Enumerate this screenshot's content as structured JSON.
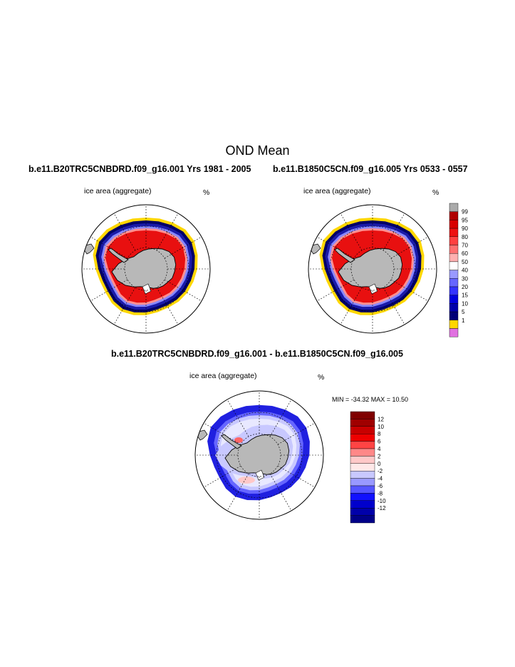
{
  "page_title": "OND Mean",
  "panels": {
    "left": {
      "title": "b.e11.B20TRC5CNBDRD.f09_g16.001  Yrs 1981 - 2005",
      "label": "ice area  (aggregate)",
      "unit": "%"
    },
    "right": {
      "title": "b.e11.B1850C5CN.f09_g16.005  Yrs 0533 - 0557",
      "label": "ice area  (aggregate)",
      "unit": "%"
    },
    "diff": {
      "title": "b.e11.B20TRC5CNBDRD.f09_g16.001 - b.e11.B1850C5CN.f09_g16.005",
      "label": "ice area  (aggregate)",
      "unit": "%",
      "minmax": "MIN = -34.32 MAX =  10.50"
    }
  },
  "chart_data": [
    {
      "type": "heatmap",
      "title": "b.e11.B20TRC5CNBDRD.f09_g16.001  Yrs 1981 - 2005",
      "variable": "ice area  (aggregate)",
      "unit": "%",
      "projection": "south polar stereographic"
    },
    {
      "type": "heatmap",
      "title": "b.e11.B1850C5CN.f09_g16.005  Yrs 0533 - 0557",
      "variable": "ice area  (aggregate)",
      "unit": "%",
      "projection": "south polar stereographic"
    },
    {
      "type": "heatmap",
      "title": "b.e11.B20TRC5CNBDRD.f09_g16.001 - b.e11.B1850C5CN.f09_g16.005",
      "variable": "ice area  (aggregate)",
      "unit": "%",
      "min": -34.32,
      "max": 10.5,
      "projection": "south polar stereographic"
    }
  ],
  "colorbars": {
    "abs": {
      "labels": [
        "99",
        "95",
        "90",
        "80",
        "70",
        "60",
        "50",
        "40",
        "30",
        "20",
        "15",
        "10",
        "5",
        "1"
      ],
      "colors": [
        "#aaaaaa",
        "#b00000",
        "#d80000",
        "#ee1111",
        "#ff4040",
        "#ff7070",
        "#ffb0b0",
        "#ffffff",
        "#9999ff",
        "#6666ff",
        "#3333ff",
        "#0000dd",
        "#0000aa",
        "#000077",
        "#ffd700",
        "#e070e0"
      ]
    },
    "diff": {
      "labels": [
        "12",
        "10",
        "8",
        "6",
        "4",
        "2",
        "0",
        "-2",
        "-4",
        "-6",
        "-8",
        "-10",
        "-12"
      ],
      "colors": [
        "#800000",
        "#a00000",
        "#c80000",
        "#ee0000",
        "#ff4444",
        "#ff8888",
        "#ffc8c8",
        "#ffe8e8",
        "#c8c8ff",
        "#9999ff",
        "#5555ff",
        "#1111ff",
        "#0000cc",
        "#0000aa",
        "#000088"
      ]
    }
  },
  "colors": {
    "land": "#b8b8b8",
    "ice_red": "#e81010",
    "ice_pink": "#ff9090",
    "edge_blue": "#1a1aa8",
    "dark_edge": "#000066",
    "yellow": "#ffd700",
    "diff_blue": "#2020e0",
    "diff_light": "#c8c8ff",
    "diff_pale": "#e8e8ff"
  }
}
